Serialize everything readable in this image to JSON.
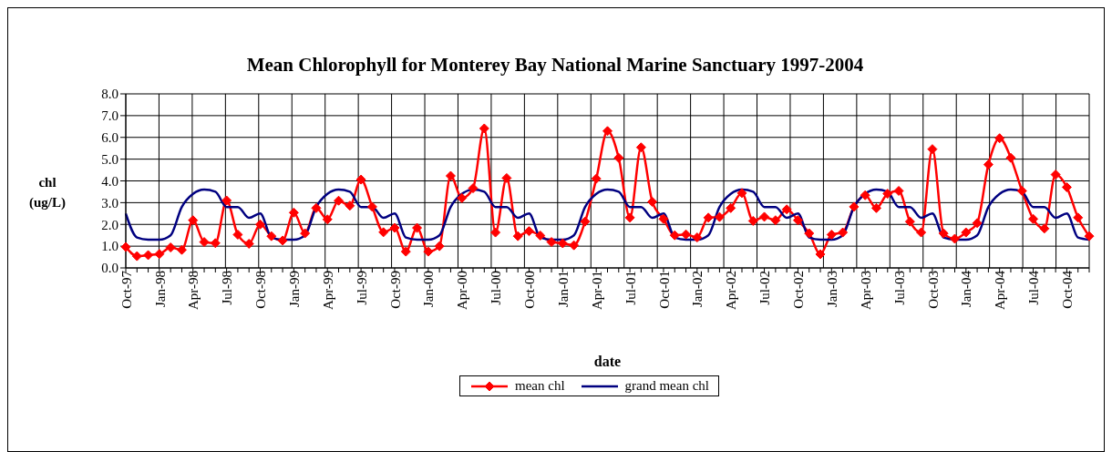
{
  "chart_data": {
    "type": "line",
    "title": "Mean Chlorophyll for Monterey Bay National Marine Sanctuary 1997-2004",
    "xlabel": "date",
    "ylabel": "chl\n(ug/L)",
    "categories": [
      "Oct-97",
      null,
      null,
      "Jan-98",
      null,
      null,
      "Apr-98",
      null,
      null,
      "Jul-98",
      null,
      null,
      "Oct-98",
      null,
      null,
      "Jan-99",
      null,
      null,
      "Apr-99",
      null,
      null,
      "Jul-99",
      null,
      null,
      "Oct-99",
      null,
      null,
      "Jan-00",
      null,
      null,
      "Apr-00",
      null,
      null,
      "Jul-00",
      null,
      null,
      "Oct-00",
      null,
      null,
      "Jan-01",
      null,
      null,
      "Apr-01",
      null,
      null,
      "Jul-01",
      null,
      null,
      "Oct-01",
      null,
      null,
      "Jan-02",
      null,
      null,
      "Apr-02",
      null,
      null,
      "Jul-02",
      null,
      null,
      "Oct-02",
      null,
      null,
      "Jan-03",
      null,
      null,
      "Apr-03",
      null,
      null,
      "Jul-03",
      null,
      null,
      "Oct-03",
      null,
      null,
      "Jan-04",
      null,
      null,
      "Apr-04",
      null,
      null,
      "Jul-04",
      null,
      null,
      "Oct-04",
      null,
      null
    ],
    "series": [
      {
        "name": "mean chl",
        "color": "#ff0000",
        "marker": "diamond",
        "values": [
          0.96,
          0.54,
          0.59,
          0.64,
          0.94,
          0.83,
          2.19,
          1.19,
          1.14,
          3.1,
          1.53,
          1.11,
          2.0,
          1.46,
          1.26,
          2.54,
          1.59,
          2.75,
          2.23,
          3.09,
          2.86,
          4.06,
          2.81,
          1.64,
          1.84,
          0.75,
          1.84,
          0.75,
          1.0,
          4.23,
          3.21,
          3.66,
          6.41,
          1.63,
          4.13,
          1.46,
          1.69,
          1.49,
          1.19,
          1.13,
          1.04,
          2.13,
          4.1,
          6.29,
          5.06,
          2.31,
          5.54,
          3.04,
          2.25,
          1.5,
          1.54,
          1.4,
          2.31,
          2.34,
          2.75,
          3.44,
          2.16,
          2.35,
          2.19,
          2.69,
          2.19,
          1.59,
          0.63,
          1.53,
          1.63,
          2.81,
          3.34,
          2.75,
          3.41,
          3.54,
          2.13,
          1.63,
          5.46,
          1.59,
          1.34,
          1.63,
          2.06,
          4.75,
          5.96,
          5.06,
          3.54,
          2.25,
          1.81,
          4.29,
          3.71,
          2.31,
          1.46
        ]
      },
      {
        "name": "grand mean chl",
        "color": "#000080",
        "marker": "none",
        "values": [
          2.5,
          1.4,
          1.3,
          1.3,
          1.5,
          2.8,
          3.4,
          3.6,
          3.5,
          2.8,
          2.8,
          2.3,
          2.5,
          1.4,
          1.3,
          1.3,
          1.5,
          2.8,
          3.4,
          3.6,
          3.5,
          2.8,
          2.8,
          2.3,
          2.5,
          1.4,
          1.3,
          1.3,
          1.5,
          2.8,
          3.4,
          3.6,
          3.5,
          2.8,
          2.8,
          2.3,
          2.5,
          1.4,
          1.3,
          1.3,
          1.5,
          2.8,
          3.4,
          3.6,
          3.5,
          2.8,
          2.8,
          2.3,
          2.5,
          1.4,
          1.3,
          1.3,
          1.5,
          2.8,
          3.4,
          3.6,
          3.5,
          2.8,
          2.8,
          2.3,
          2.5,
          1.4,
          1.3,
          1.3,
          1.5,
          2.8,
          3.4,
          3.6,
          3.5,
          2.8,
          2.8,
          2.3,
          2.5,
          1.4,
          1.3,
          1.3,
          1.5,
          2.8,
          3.4,
          3.6,
          3.5,
          2.8,
          2.8,
          2.3,
          2.5,
          1.4,
          1.3
        ]
      }
    ],
    "ylim": [
      0,
      8
    ],
    "yticks": [
      {
        "value": 0,
        "label": "0.0"
      },
      {
        "value": 1,
        "label": "1.0"
      },
      {
        "value": 2,
        "label": "2.0"
      },
      {
        "value": 3,
        "label": "3.0"
      },
      {
        "value": 4,
        "label": "4.0"
      },
      {
        "value": 5,
        "label": "5.0"
      },
      {
        "value": 6,
        "label": "6.0"
      },
      {
        "value": 7,
        "label": "7.0"
      },
      {
        "value": 8,
        "label": "8.0"
      }
    ],
    "grid": true,
    "legend": "bottom",
    "line_style": "solid"
  }
}
